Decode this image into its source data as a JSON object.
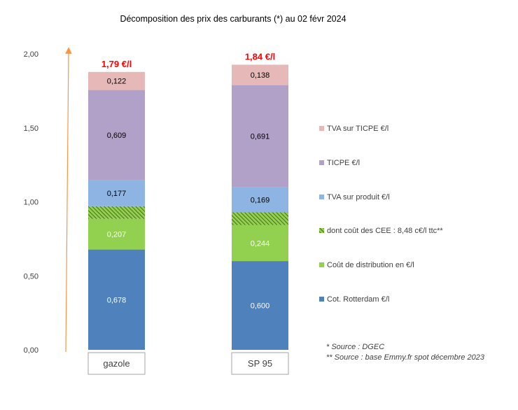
{
  "chart_data": {
    "type": "bar",
    "stacked": true,
    "title": "Décomposition des prix des carburants (*) au 02 févr 2024",
    "categories": [
      "gazole",
      "SP 95"
    ],
    "totals": [
      "1,79 €/l",
      "1,84 €/l"
    ],
    "ylim": [
      0,
      2
    ],
    "yticks": [
      "0,00",
      "0,50",
      "1,00",
      "1,50",
      "2,00"
    ],
    "grid": false,
    "legend_position": "right",
    "series": [
      {
        "name": "Cot. Rotterdam €/l",
        "values": [
          0.678,
          0.6
        ],
        "labels": [
          "0,678",
          "0,600"
        ],
        "color": "#4f81bd",
        "label_color": "#ffffff"
      },
      {
        "name": "Coût de distribution en €/l",
        "values": [
          0.207,
          0.244
        ],
        "labels": [
          "0,207",
          "0,244"
        ],
        "color": "#92d050",
        "label_color": "#ffffff"
      },
      {
        "name": "dont coût des CEE : 8,48 c€/l ttc**",
        "values": [
          0.085,
          0.085
        ],
        "labels": [
          "",
          ""
        ],
        "color": "#76923c",
        "pattern": "hatch",
        "label_color": "#ffffff"
      },
      {
        "name": "TVA sur produit €/l",
        "values": [
          0.177,
          0.169
        ],
        "labels": [
          "0,177",
          "0,169"
        ],
        "color": "#8db4e2",
        "label_color": "#000000"
      },
      {
        "name": "TICPE €/l",
        "values": [
          0.609,
          0.691
        ],
        "labels": [
          "0,609",
          "0,691"
        ],
        "color": "#b1a0c7",
        "label_color": "#000000"
      },
      {
        "name": "TVA sur TICPE €/l",
        "values": [
          0.122,
          0.138
        ],
        "labels": [
          "0,122",
          "0,138"
        ],
        "color": "#e6b9b8",
        "label_color": "#000000"
      }
    ],
    "legend_order": [
      "TVA sur TICPE €/l",
      "TICPE €/l",
      "TVA sur produit €/l",
      "dont coût des CEE : 8,48 c€/l ttc**",
      "Coût de distribution en €/l",
      "Cot. Rotterdam €/l"
    ],
    "notes": [
      "* Source : DGEC",
      "** Source : base Emmy.fr spot décembre 2023"
    ],
    "colors": {
      "total_label": "#ff0000",
      "arrow": "#f79646",
      "axis_text": "#404040",
      "category_border": "#a6a6a6"
    }
  }
}
